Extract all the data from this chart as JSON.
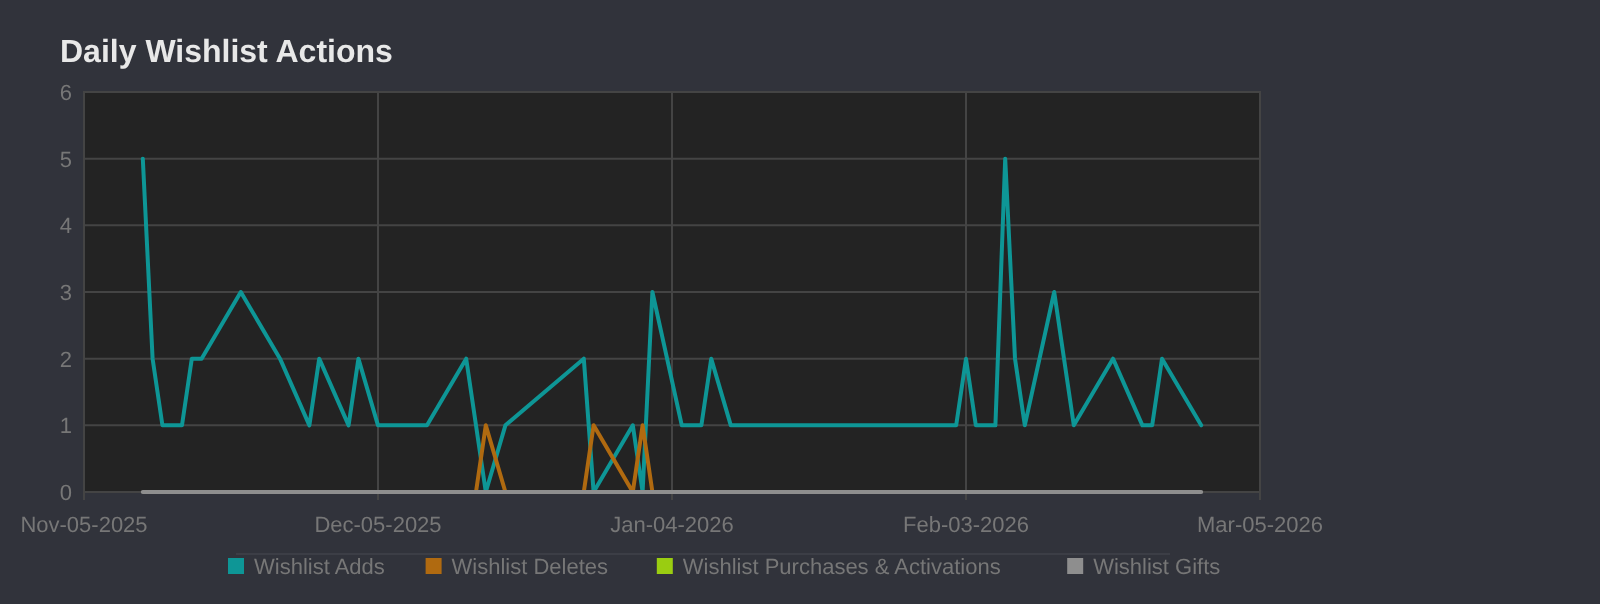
{
  "chart_data": {
    "type": "line",
    "title": "Daily Wishlist Actions",
    "xlim": [
      "2025-11-05",
      "2026-03-05"
    ],
    "xticks": [
      {
        "value": "2025-11-05",
        "label": "Nov-05-2025"
      },
      {
        "value": "2025-12-05",
        "label": "Dec-05-2025"
      },
      {
        "value": "2026-01-04",
        "label": "Jan-04-2026"
      },
      {
        "value": "2026-02-03",
        "label": "Feb-03-2026"
      },
      {
        "value": "2026-03-05",
        "label": "Mar-05-2026"
      }
    ],
    "ylim": [
      0,
      6
    ],
    "yticks": [
      0,
      1,
      2,
      3,
      4,
      5,
      6
    ],
    "grid": true,
    "legend": "bottom",
    "marker": "none",
    "line_style": "solid",
    "series": [
      {
        "name": "Wishlist Adds",
        "color": "#0e9696",
        "x": [
          "2025-11-11",
          "2025-11-12",
          "2025-11-13",
          "2025-11-15",
          "2025-11-16",
          "2025-11-17",
          "2025-11-21",
          "2025-11-25",
          "2025-11-28",
          "2025-11-29",
          "2025-12-02",
          "2025-12-03",
          "2025-12-05",
          "2025-12-10",
          "2025-12-14",
          "2025-12-16",
          "2025-12-18",
          "2025-12-26",
          "2025-12-27",
          "2025-12-31",
          "2026-01-01",
          "2026-01-02",
          "2026-01-05",
          "2026-01-07",
          "2026-01-08",
          "2026-01-10",
          "2026-02-02",
          "2026-02-03",
          "2026-02-04",
          "2026-02-06",
          "2026-02-07",
          "2026-02-08",
          "2026-02-09",
          "2026-02-12",
          "2026-02-14",
          "2026-02-18",
          "2026-02-21",
          "2026-02-22",
          "2026-02-23",
          "2026-02-27"
        ],
        "values": [
          5,
          2,
          1,
          1,
          2,
          2,
          3,
          2,
          1,
          2,
          1,
          2,
          1,
          1,
          2,
          0,
          1,
          2,
          0,
          1,
          0,
          3,
          1,
          1,
          2,
          1,
          1,
          2,
          1,
          1,
          5,
          2,
          1,
          3,
          1,
          2,
          1,
          1,
          2,
          1
        ]
      },
      {
        "name": "Wishlist Deletes",
        "color": "#b06a10",
        "x": [
          "2025-12-15",
          "2025-12-16",
          "2025-12-18",
          "2025-12-26",
          "2025-12-27",
          "2025-12-31",
          "2026-01-01",
          "2026-01-02"
        ],
        "values": [
          0,
          1,
          0,
          0,
          1,
          0,
          1,
          0
        ]
      },
      {
        "name": "Wishlist Purchases & Activations",
        "color": "#9acd11"
      },
      {
        "name": "Wishlist Gifts",
        "color": "#8e8e8e",
        "x": [
          "2025-11-11",
          "2026-02-27"
        ],
        "values": [
          0,
          0
        ]
      }
    ]
  }
}
